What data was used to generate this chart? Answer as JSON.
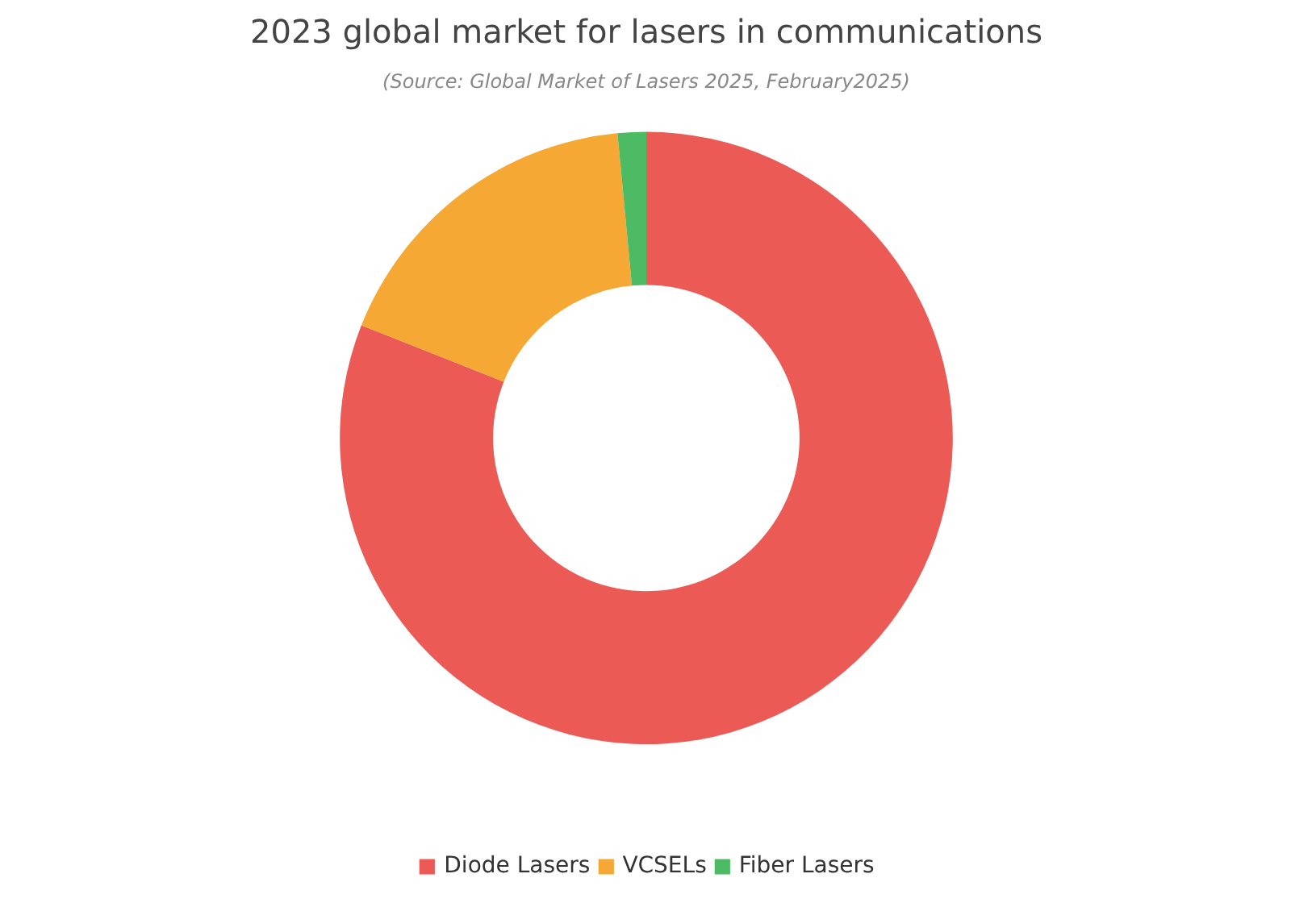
{
  "chart_data": {
    "type": "donut",
    "title": "2023 global market for lasers in communications",
    "subtitle": "(Source: Global Market of Lasers 2025, February2025)",
    "categories": [
      "Diode Lasers",
      "VCSELs",
      "Fiber Lasers"
    ],
    "values": [
      81,
      17.5,
      1.5
    ],
    "colors": [
      "#eb5a55",
      "#f5a833",
      "#4cbb63"
    ],
    "legend": "bottom"
  }
}
